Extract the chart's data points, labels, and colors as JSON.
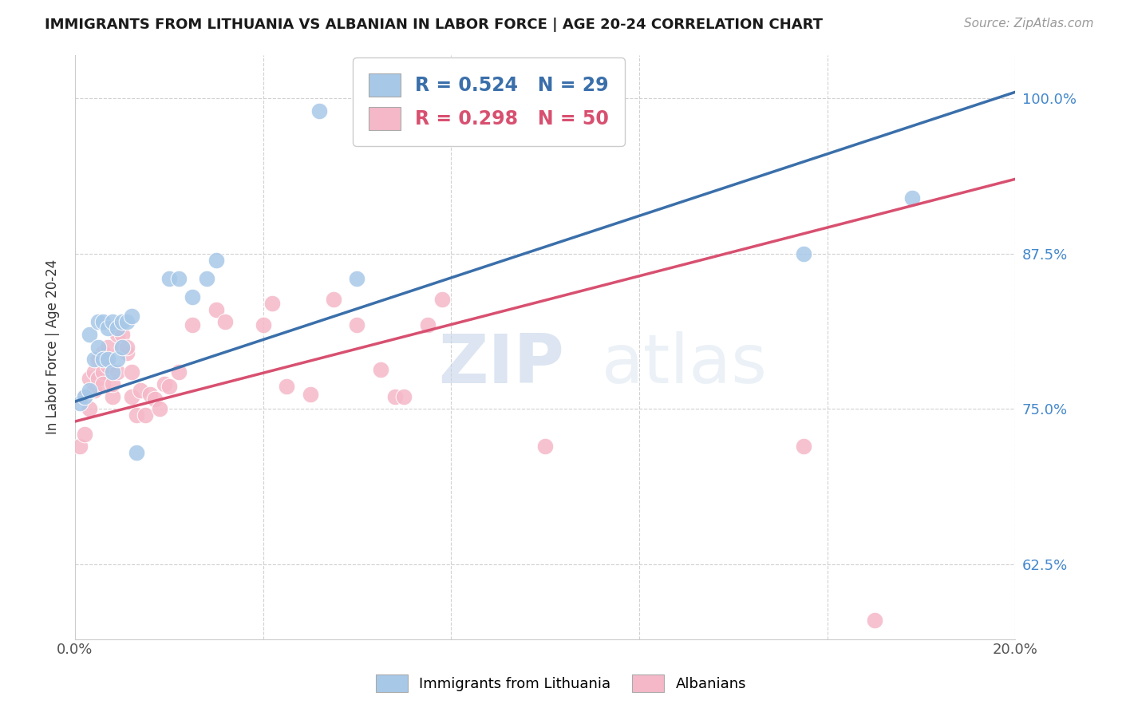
{
  "title": "IMMIGRANTS FROM LITHUANIA VS ALBANIAN IN LABOR FORCE | AGE 20-24 CORRELATION CHART",
  "source": "Source: ZipAtlas.com",
  "ylabel": "In Labor Force | Age 20-24",
  "xlim": [
    0.0,
    0.2
  ],
  "ylim": [
    0.565,
    1.035
  ],
  "ytick_labels_right": [
    "62.5%",
    "75.0%",
    "87.5%",
    "100.0%"
  ],
  "yticks_right": [
    0.625,
    0.75,
    0.875,
    1.0
  ],
  "R_blue": 0.524,
  "N_blue": 29,
  "R_pink": 0.298,
  "N_pink": 50,
  "blue_color": "#a8c8e8",
  "pink_color": "#f5b8c8",
  "blue_line_color": "#3a6faa",
  "pink_line_color": "#d85070",
  "blue_scatter_x": [
    0.001,
    0.002,
    0.003,
    0.003,
    0.004,
    0.005,
    0.005,
    0.006,
    0.006,
    0.007,
    0.007,
    0.008,
    0.008,
    0.009,
    0.009,
    0.01,
    0.01,
    0.011,
    0.012,
    0.013,
    0.02,
    0.022,
    0.025,
    0.028,
    0.03,
    0.052,
    0.06,
    0.155,
    0.178
  ],
  "blue_scatter_y": [
    0.755,
    0.76,
    0.765,
    0.81,
    0.79,
    0.8,
    0.82,
    0.79,
    0.82,
    0.79,
    0.815,
    0.78,
    0.82,
    0.79,
    0.815,
    0.8,
    0.82,
    0.82,
    0.825,
    0.715,
    0.855,
    0.855,
    0.84,
    0.855,
    0.87,
    0.99,
    0.855,
    0.875,
    0.92
  ],
  "pink_scatter_x": [
    0.001,
    0.002,
    0.002,
    0.003,
    0.003,
    0.004,
    0.004,
    0.005,
    0.005,
    0.006,
    0.006,
    0.006,
    0.007,
    0.007,
    0.008,
    0.008,
    0.009,
    0.009,
    0.01,
    0.01,
    0.011,
    0.011,
    0.012,
    0.012,
    0.013,
    0.014,
    0.015,
    0.016,
    0.017,
    0.018,
    0.019,
    0.02,
    0.022,
    0.025,
    0.03,
    0.032,
    0.04,
    0.042,
    0.045,
    0.05,
    0.055,
    0.06,
    0.065,
    0.068,
    0.07,
    0.075,
    0.078,
    0.1,
    0.155,
    0.17
  ],
  "pink_scatter_y": [
    0.72,
    0.73,
    0.76,
    0.75,
    0.775,
    0.765,
    0.78,
    0.775,
    0.79,
    0.78,
    0.77,
    0.795,
    0.785,
    0.8,
    0.76,
    0.77,
    0.78,
    0.81,
    0.8,
    0.81,
    0.795,
    0.8,
    0.76,
    0.78,
    0.745,
    0.765,
    0.745,
    0.762,
    0.758,
    0.75,
    0.77,
    0.768,
    0.78,
    0.818,
    0.83,
    0.82,
    0.818,
    0.835,
    0.768,
    0.762,
    0.838,
    0.818,
    0.782,
    0.76,
    0.76,
    0.818,
    0.838,
    0.72,
    0.72,
    0.58
  ],
  "watermark_zip": "ZIP",
  "watermark_atlas": "atlas",
  "background_color": "#ffffff",
  "grid_color": "#cccccc",
  "blue_line_x0": 0.0,
  "blue_line_y0": 0.756,
  "blue_line_x1": 0.2,
  "blue_line_y1": 1.005,
  "pink_line_x0": 0.0,
  "pink_line_y0": 0.74,
  "pink_line_x1": 0.2,
  "pink_line_y1": 0.935
}
